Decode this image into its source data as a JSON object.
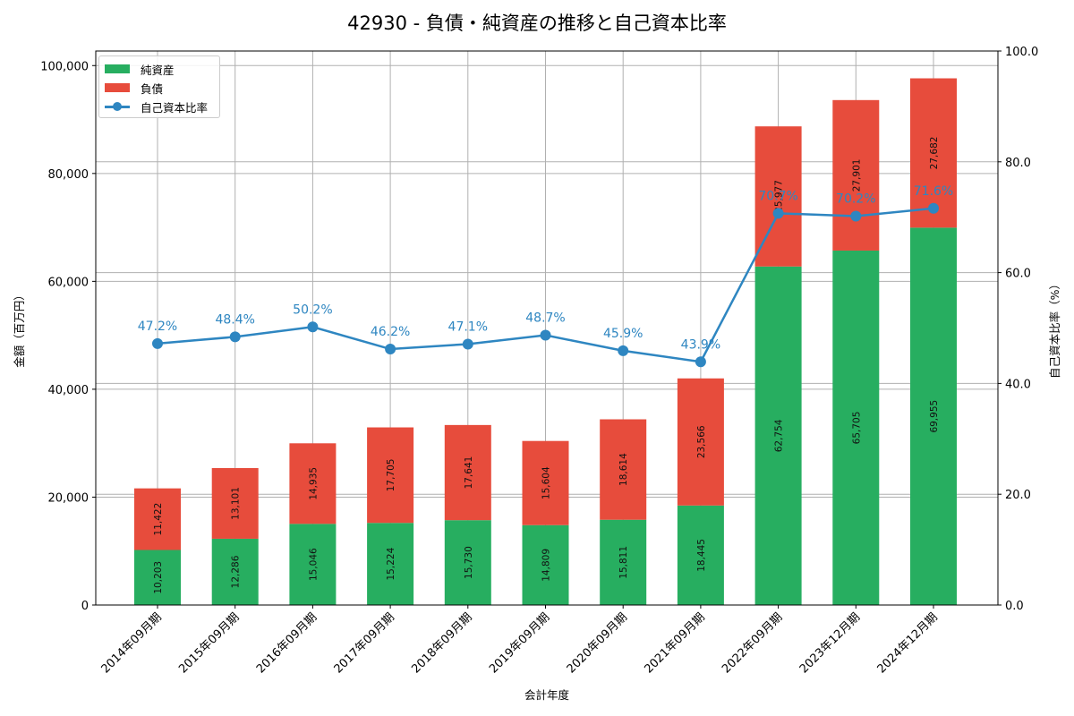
{
  "chart_data": {
    "type": "bar",
    "subtype": "stacked bar + line (dual axis)",
    "title": "42930 - 負債・純資産の推移と自己資本比率",
    "xlabel": "会計年度",
    "ylabel": "金額（百万円）",
    "ylabel_right": "自己資本比率（%）",
    "categories": [
      "2014年09月期",
      "2015年09月期",
      "2016年09月期",
      "2017年09月期",
      "2018年09月期",
      "2019年09月期",
      "2020年09月期",
      "2021年09月期",
      "2022年09月期",
      "2023年12月期",
      "2024年12月期"
    ],
    "series": [
      {
        "name": "純資産",
        "type": "bar",
        "stack": "total",
        "axis": "left",
        "color": "#27ae60",
        "values": [
          10203,
          12286,
          15046,
          15224,
          15730,
          14809,
          15811,
          18445,
          62754,
          65705,
          69955
        ],
        "labels": [
          "10,203",
          "12,286",
          "15,046",
          "15,224",
          "15,730",
          "14,809",
          "15,811",
          "18,445",
          "62,754",
          "65,705",
          "69,955"
        ]
      },
      {
        "name": "負債",
        "type": "bar",
        "stack": "total",
        "axis": "left",
        "color": "#e74c3c",
        "values": [
          11422,
          13101,
          14935,
          17705,
          17641,
          15604,
          18614,
          23566,
          25977,
          27901,
          27682
        ],
        "labels": [
          "11,422",
          "13,101",
          "14,935",
          "17,705",
          "17,641",
          "15,604",
          "18,614",
          "23,566",
          "25,977",
          "27,901",
          "27,682"
        ]
      },
      {
        "name": "自己資本比率",
        "type": "line",
        "axis": "right",
        "color": "#2e86c1",
        "values": [
          47.2,
          48.4,
          50.2,
          46.2,
          47.1,
          48.7,
          45.9,
          43.9,
          70.7,
          70.2,
          71.6
        ],
        "labels": [
          "47.2%",
          "48.4%",
          "50.2%",
          "46.2%",
          "47.1%",
          "48.7%",
          "45.9%",
          "43.9%",
          "70.7%",
          "70.2%",
          "71.6%"
        ]
      }
    ],
    "ylim": [
      0,
      102700
    ],
    "ylim_right": [
      0,
      100
    ],
    "yticks": [
      0,
      20000,
      40000,
      60000,
      80000,
      100000
    ],
    "ytick_labels": [
      "0",
      "20,000",
      "40,000",
      "60,000",
      "80,000",
      "100,000"
    ],
    "yticks_right": [
      0,
      20,
      40,
      60,
      80,
      100
    ],
    "ytick_labels_right": [
      "0.0",
      "20.0",
      "40.0",
      "60.0",
      "80.0",
      "100.0"
    ],
    "grid": true,
    "legend_position": "upper left"
  },
  "legend": {
    "items": [
      {
        "label": "純資産",
        "color": "#27ae60"
      },
      {
        "label": "負債",
        "color": "#e74c3c"
      },
      {
        "label": "自己資本比率",
        "color": "#2e86c1"
      }
    ]
  }
}
